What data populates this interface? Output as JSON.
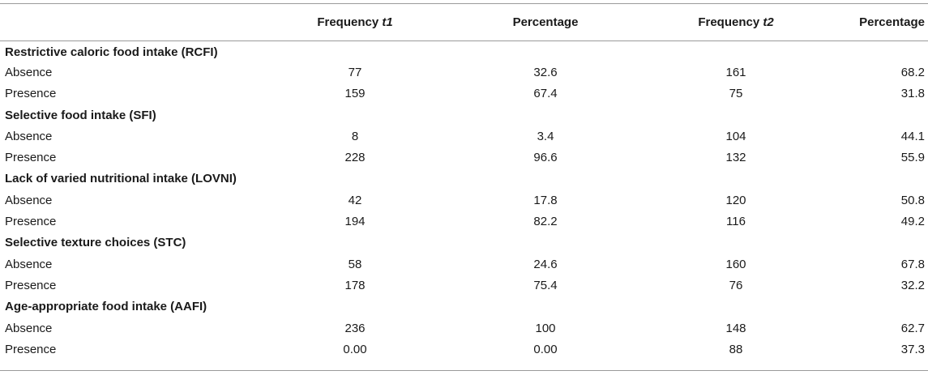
{
  "headers": {
    "col0": "",
    "freq_t1": "Frequency ",
    "freq_t1_var": "t1",
    "pct1": "Percentage",
    "freq_t2": "Frequency ",
    "freq_t2_var": "t2",
    "pct2": "Percentage"
  },
  "sections": [
    {
      "title": "Restrictive caloric food intake (RCFI)",
      "rows": [
        {
          "label": "Absence",
          "f1": "77",
          "p1": "32.6",
          "f2": "161",
          "p2": "68.2"
        },
        {
          "label": "Presence",
          "f1": "159",
          "p1": "67.4",
          "f2": "75",
          "p2": "31.8"
        }
      ]
    },
    {
      "title": "Selective food intake (SFI)",
      "rows": [
        {
          "label": "Absence",
          "f1": "8",
          "p1": "3.4",
          "f2": "104",
          "p2": "44.1"
        },
        {
          "label": "Presence",
          "f1": "228",
          "p1": "96.6",
          "f2": "132",
          "p2": "55.9"
        }
      ]
    },
    {
      "title": "Lack of varied nutritional intake (LOVNI)",
      "rows": [
        {
          "label": "Absence",
          "f1": "42",
          "p1": "17.8",
          "f2": "120",
          "p2": "50.8"
        },
        {
          "label": "Presence",
          "f1": "194",
          "p1": "82.2",
          "f2": "116",
          "p2": "49.2"
        }
      ]
    },
    {
      "title": "Selective texture choices (STC)",
      "rows": [
        {
          "label": "Absence",
          "f1": "58",
          "p1": "24.6",
          "f2": "160",
          "p2": "67.8"
        },
        {
          "label": "Presence",
          "f1": "178",
          "p1": "75.4",
          "f2": "76",
          "p2": "32.2"
        }
      ]
    },
    {
      "title": "Age-appropriate food intake (AAFI)",
      "rows": [
        {
          "label": "Absence",
          "f1": "236",
          "p1": "100",
          "f2": "148",
          "p2": "62.7"
        },
        {
          "label": "Presence",
          "f1": "0.00",
          "p1": "0.00",
          "f2": "88",
          "p2": "37.3"
        }
      ]
    }
  ]
}
